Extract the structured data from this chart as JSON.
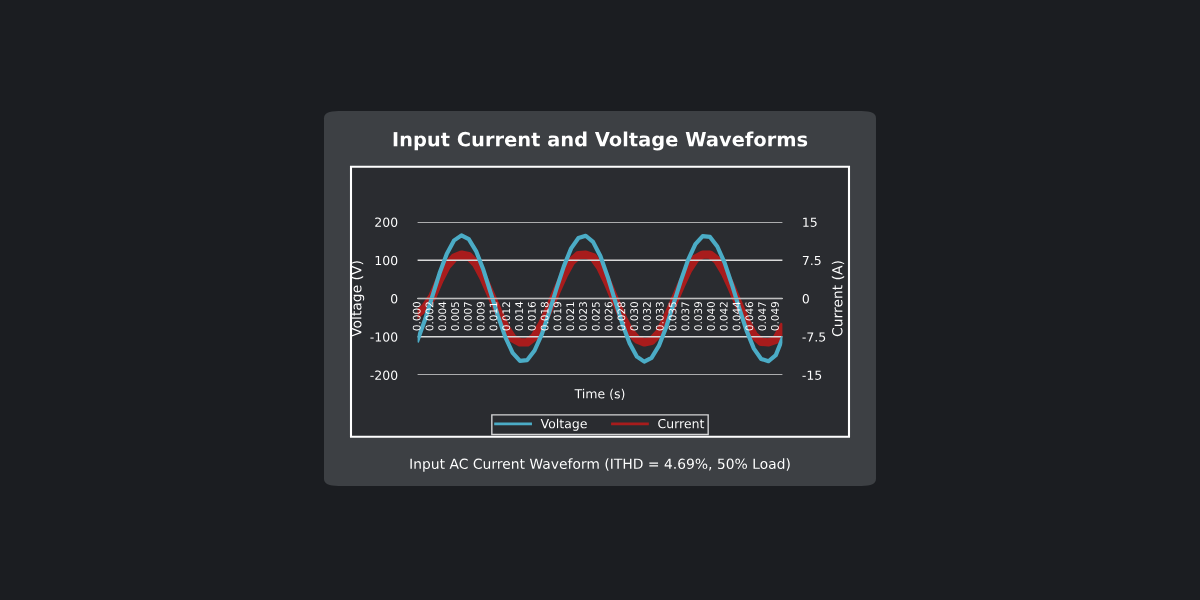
{
  "chart_data": {
    "type": "line",
    "title": "Input Current and Voltage Waveforms",
    "xlabel": "Time (s)",
    "ylabel": "Voltage (V)",
    "y2label": "Current (A)",
    "annotations": [
      "Input AC Current Waveform (ITHD = 4.69%, 50% Load)"
    ],
    "x": [
      0,
      0.001,
      0.002,
      0.003,
      0.004,
      0.005,
      0.006,
      0.007,
      0.008,
      0.009,
      0.01,
      0.011,
      0.012,
      0.013,
      0.014,
      0.015,
      0.016,
      0.017,
      0.018,
      0.019,
      0.02,
      0.021,
      0.022,
      0.023,
      0.024,
      0.025,
      0.026,
      0.027,
      0.028,
      0.029,
      0.03,
      0.031,
      0.032,
      0.033,
      0.034,
      0.035,
      0.036,
      0.037,
      0.038,
      0.039,
      0.04,
      0.041,
      0.042,
      0.043,
      0.044,
      0.045,
      0.046,
      0.047,
      0.048,
      0.049,
      0.0499
    ],
    "series": [
      {
        "name": "Voltage",
        "color": "#4bacc6",
        "values": [
          -109,
          -56,
          5,
          66,
          117,
          152,
          165,
          155,
          124,
          75,
          15,
          -46,
          -101,
          -142,
          -163,
          -161,
          -136,
          -93,
          -36,
          26,
          84,
          131,
          158,
          164,
          148,
          111,
          57,
          -5,
          -66,
          -117,
          -152,
          -165,
          -155,
          -124,
          -75,
          -15,
          46,
          101,
          142,
          163,
          161,
          136,
          93,
          36,
          -26,
          -84,
          -131,
          -158,
          -164,
          -148,
          -105
        ]
      },
      {
        "name": "Current",
        "color": "#a81c1c",
        "axis": "y2",
        "values": [
          -3.0,
          -1.8,
          0.3,
          3.6,
          6.4,
          8.0,
          8.6,
          8.3,
          6.8,
          4.1,
          0.8,
          -2.5,
          -5.6,
          -7.8,
          -8.6,
          -8.6,
          -7.5,
          -5.1,
          -2.0,
          1.4,
          4.6,
          7.2,
          8.5,
          8.6,
          8.1,
          6.1,
          3.1,
          -0.3,
          -3.6,
          -6.4,
          -8.0,
          -8.6,
          -8.3,
          -6.8,
          -4.1,
          -0.8,
          2.5,
          5.6,
          7.8,
          8.6,
          8.6,
          7.5,
          5.1,
          2.0,
          -1.4,
          -4.6,
          -7.2,
          -8.5,
          -8.6,
          -8.1,
          -5.8
        ]
      }
    ],
    "xlim": [
      0,
      0.0499
    ],
    "xticks": [
      {
        "value": 0,
        "label": "0.000"
      },
      {
        "value": 0.00175,
        "label": "0.002"
      },
      {
        "value": 0.0035,
        "label": "0.004"
      },
      {
        "value": 0.00525,
        "label": "0.005"
      },
      {
        "value": 0.007,
        "label": "0.007"
      },
      {
        "value": 0.00875,
        "label": "0.009"
      },
      {
        "value": 0.0105,
        "label": "0.011"
      },
      {
        "value": 0.01225,
        "label": "0.012"
      },
      {
        "value": 0.014,
        "label": "0.014"
      },
      {
        "value": 0.01575,
        "label": "0.016"
      },
      {
        "value": 0.0175,
        "label": "0.018"
      },
      {
        "value": 0.01925,
        "label": "0.019"
      },
      {
        "value": 0.021,
        "label": "0.021"
      },
      {
        "value": 0.02275,
        "label": "0.023"
      },
      {
        "value": 0.0245,
        "label": "0.025"
      },
      {
        "value": 0.02625,
        "label": "0.026"
      },
      {
        "value": 0.028,
        "label": "0.028"
      },
      {
        "value": 0.02975,
        "label": "0.030"
      },
      {
        "value": 0.0315,
        "label": "0.032"
      },
      {
        "value": 0.03325,
        "label": "0.033"
      },
      {
        "value": 0.035,
        "label": "0.035"
      },
      {
        "value": 0.03675,
        "label": "0.037"
      },
      {
        "value": 0.0385,
        "label": "0.039"
      },
      {
        "value": 0.04025,
        "label": "0.040"
      },
      {
        "value": 0.042,
        "label": "0.042"
      },
      {
        "value": 0.04375,
        "label": "0.044"
      },
      {
        "value": 0.0455,
        "label": "0.046"
      },
      {
        "value": 0.04725,
        "label": "0.047"
      },
      {
        "value": 0.049,
        "label": "0.049"
      }
    ],
    "ylim": [
      -200,
      200
    ],
    "yticks": [
      -200,
      -100,
      0,
      100,
      200
    ],
    "y2lim": [
      -15,
      15
    ],
    "y2ticks": [
      -15,
      {
        "value": -7.5,
        "label": "-7.5"
      },
      0,
      {
        "value": 7.5,
        "label": "7.5"
      },
      15
    ],
    "grid": "y",
    "legend": "bottom",
    "marker": "none",
    "line_style": "solid"
  }
}
